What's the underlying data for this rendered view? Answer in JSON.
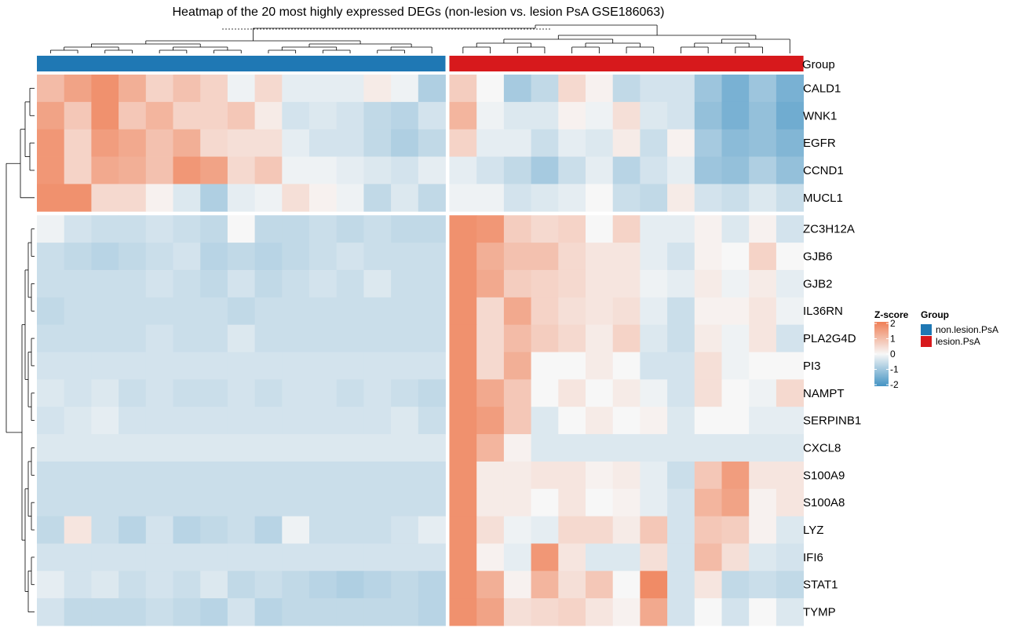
{
  "chart_data": {
    "type": "heatmap",
    "title": "Heatmap of the 20 most highly expressed DEGs (non-lesion vs. lesion PsA GSE186063)",
    "annotation_label": "Group",
    "rows": [
      "CALD1",
      "WNK1",
      "EGFR",
      "CCND1",
      "MUCL1",
      "ZC3H12A",
      "GJB6",
      "GJB2",
      "IL36RN",
      "PLA2G4D",
      "PI3",
      "NAMPT",
      "SERPINB1",
      "CXCL8",
      "S100A9",
      "S100A8",
      "LYZ",
      "IFI6",
      "STAT1",
      "TYMP"
    ],
    "column_groups": [
      {
        "name": "non.lesion.PsA",
        "color": "#1F78B4",
        "n_columns": 15
      },
      {
        "name": "lesion.PsA",
        "color": "#D7191C",
        "n_columns": 13
      }
    ],
    "values": [
      [
        1.0,
        1.4,
        1.7,
        1.2,
        0.6,
        0.9,
        0.6,
        -0.1,
        0.5,
        -0.2,
        -0.2,
        -0.2,
        0.2,
        -0.1,
        -0.8,
        0.7,
        0.0,
        -0.9,
        -0.6,
        0.5,
        0.1,
        -0.6,
        -0.4,
        -0.4,
        -1.0,
        -1.4,
        -1.0,
        -1.4
      ],
      [
        1.4,
        0.8,
        1.7,
        0.8,
        1.1,
        0.6,
        0.6,
        0.8,
        0.2,
        -0.4,
        -0.3,
        -0.4,
        -0.6,
        -0.7,
        -0.4,
        1.1,
        -0.1,
        -0.3,
        -0.3,
        0.1,
        -0.1,
        0.4,
        -0.3,
        -0.4,
        -1.1,
        -1.4,
        -1.1,
        -1.5
      ],
      [
        1.6,
        0.6,
        1.5,
        1.3,
        0.9,
        1.2,
        0.5,
        0.4,
        0.4,
        -0.2,
        -0.4,
        -0.4,
        -0.6,
        -0.8,
        -0.6,
        0.6,
        -0.2,
        -0.2,
        -0.5,
        -0.2,
        -0.3,
        0.2,
        -0.5,
        0.1,
        -0.9,
        -1.2,
        -1.1,
        -1.3
      ],
      [
        1.6,
        0.6,
        1.3,
        1.2,
        0.9,
        1.6,
        1.4,
        0.5,
        0.8,
        -0.1,
        -0.1,
        -0.2,
        -0.3,
        -0.4,
        -0.2,
        -0.2,
        -0.4,
        -0.6,
        -0.9,
        -0.5,
        -0.2,
        -0.7,
        -0.4,
        -0.2,
        -1.0,
        -1.1,
        -0.8,
        -1.1
      ],
      [
        1.7,
        1.7,
        0.5,
        0.5,
        0.1,
        -0.3,
        -0.8,
        -0.2,
        -0.1,
        0.4,
        0.1,
        -0.1,
        -0.6,
        -0.3,
        -0.6,
        -0.1,
        -0.1,
        -0.4,
        -0.3,
        -0.2,
        0.0,
        -0.5,
        -0.6,
        0.2,
        -0.4,
        -0.5,
        -0.3,
        -0.5
      ],
      [
        -0.1,
        -0.4,
        -0.5,
        -0.5,
        -0.4,
        -0.5,
        -0.6,
        0.0,
        -0.6,
        -0.6,
        -0.5,
        -0.6,
        -0.5,
        -0.6,
        -0.6,
        1.7,
        1.6,
        0.7,
        0.5,
        0.6,
        0.0,
        0.6,
        -0.2,
        -0.2,
        0.1,
        -0.3,
        0.1,
        -0.4
      ],
      [
        -0.5,
        -0.6,
        -0.7,
        -0.6,
        -0.5,
        -0.4,
        -0.7,
        -0.6,
        -0.7,
        -0.6,
        -0.5,
        -0.4,
        -0.5,
        -0.5,
        -0.5,
        1.7,
        1.2,
        0.9,
        0.9,
        0.5,
        0.3,
        0.3,
        -0.2,
        -0.4,
        0.1,
        0.0,
        0.6,
        0.0
      ],
      [
        -0.5,
        -0.5,
        -0.5,
        -0.5,
        -0.4,
        -0.5,
        -0.6,
        -0.4,
        -0.6,
        -0.5,
        -0.4,
        -0.5,
        -0.3,
        -0.5,
        -0.5,
        1.7,
        1.3,
        0.7,
        0.6,
        0.5,
        0.3,
        0.3,
        -0.1,
        -0.2,
        0.2,
        -0.1,
        0.2,
        -0.2
      ],
      [
        -0.6,
        -0.5,
        -0.5,
        -0.5,
        -0.5,
        -0.5,
        -0.5,
        -0.6,
        -0.5,
        -0.5,
        -0.5,
        -0.5,
        -0.5,
        -0.5,
        -0.5,
        1.7,
        0.5,
        1.3,
        0.6,
        0.4,
        0.3,
        0.4,
        -0.2,
        -0.5,
        0.1,
        0.1,
        0.3,
        -0.1
      ],
      [
        -0.5,
        -0.5,
        -0.5,
        -0.5,
        -0.4,
        -0.5,
        -0.5,
        -0.3,
        -0.5,
        -0.5,
        -0.5,
        -0.5,
        -0.5,
        -0.5,
        -0.5,
        1.7,
        0.5,
        1.0,
        0.7,
        0.5,
        0.2,
        0.6,
        -0.3,
        -0.5,
        0.2,
        -0.1,
        0.3,
        -0.4
      ],
      [
        -0.4,
        -0.4,
        -0.4,
        -0.4,
        -0.4,
        -0.4,
        -0.4,
        -0.4,
        -0.4,
        -0.4,
        -0.4,
        -0.4,
        -0.4,
        -0.4,
        -0.4,
        1.7,
        0.5,
        1.2,
        0.0,
        0.0,
        0.2,
        0.0,
        -0.4,
        -0.4,
        0.4,
        -0.1,
        0.0,
        0.0
      ],
      [
        -0.3,
        -0.4,
        -0.3,
        -0.5,
        -0.4,
        -0.5,
        -0.5,
        -0.4,
        -0.5,
        -0.4,
        -0.4,
        -0.5,
        -0.4,
        -0.5,
        -0.6,
        1.7,
        1.3,
        0.8,
        0.0,
        0.3,
        0.0,
        0.2,
        -0.1,
        -0.4,
        0.4,
        0.0,
        -0.1,
        0.5
      ],
      [
        -0.4,
        -0.3,
        -0.2,
        -0.4,
        -0.4,
        -0.4,
        -0.4,
        -0.4,
        -0.4,
        -0.4,
        -0.4,
        -0.4,
        -0.4,
        -0.3,
        -0.5,
        1.7,
        1.5,
        0.8,
        -0.3,
        0.0,
        0.2,
        0.0,
        0.1,
        -0.3,
        0.0,
        0.0,
        -0.2,
        -0.2
      ],
      [
        -0.3,
        -0.3,
        -0.3,
        -0.3,
        -0.3,
        -0.3,
        -0.3,
        -0.3,
        -0.3,
        -0.3,
        -0.3,
        -0.3,
        -0.3,
        -0.3,
        -0.3,
        1.7,
        1.1,
        0.1,
        -0.3,
        -0.3,
        -0.3,
        -0.3,
        -0.3,
        -0.3,
        -0.3,
        -0.3,
        -0.3,
        -0.3
      ],
      [
        -0.5,
        -0.5,
        -0.5,
        -0.5,
        -0.5,
        -0.5,
        -0.5,
        -0.5,
        -0.5,
        -0.5,
        -0.5,
        -0.5,
        -0.5,
        -0.5,
        -0.5,
        1.7,
        0.2,
        0.2,
        0.3,
        0.3,
        0.1,
        0.2,
        -0.2,
        -0.5,
        0.8,
        1.5,
        0.3,
        0.3
      ],
      [
        -0.5,
        -0.5,
        -0.5,
        -0.5,
        -0.5,
        -0.5,
        -0.5,
        -0.5,
        -0.5,
        -0.5,
        -0.5,
        -0.5,
        -0.5,
        -0.5,
        -0.5,
        1.7,
        0.2,
        0.2,
        0.0,
        0.3,
        0.0,
        0.1,
        -0.2,
        -0.4,
        1.1,
        1.4,
        0.1,
        0.3
      ],
      [
        -0.6,
        0.3,
        -0.5,
        -0.7,
        -0.4,
        -0.7,
        -0.6,
        -0.5,
        -0.7,
        -0.1,
        -0.5,
        -0.5,
        -0.5,
        -0.4,
        -0.2,
        1.7,
        0.4,
        -0.1,
        -0.2,
        0.5,
        0.5,
        0.2,
        0.8,
        -0.4,
        0.8,
        0.7,
        0.1,
        -0.3
      ],
      [
        -0.4,
        -0.4,
        -0.4,
        -0.4,
        -0.4,
        -0.4,
        -0.4,
        -0.4,
        -0.4,
        -0.4,
        -0.4,
        -0.4,
        -0.4,
        -0.4,
        -0.4,
        1.7,
        0.1,
        -0.2,
        1.6,
        0.3,
        -0.3,
        -0.3,
        0.4,
        -0.4,
        1.0,
        0.4,
        -0.3,
        -0.4
      ],
      [
        -0.2,
        -0.4,
        -0.3,
        -0.5,
        -0.4,
        -0.5,
        -0.3,
        -0.6,
        -0.5,
        -0.6,
        -0.7,
        -0.8,
        -0.7,
        -0.6,
        -0.7,
        1.7,
        1.2,
        0.1,
        1.1,
        0.4,
        0.8,
        0.0,
        1.8,
        -0.4,
        0.3,
        -0.6,
        -0.5,
        -0.6
      ],
      [
        -0.4,
        -0.6,
        -0.6,
        -0.6,
        -0.5,
        -0.6,
        -0.7,
        -0.4,
        -0.7,
        -0.6,
        -0.6,
        -0.6,
        -0.6,
        -0.6,
        -0.7,
        1.7,
        1.4,
        0.4,
        0.5,
        0.6,
        0.3,
        0.1,
        1.3,
        -0.4,
        0.0,
        -0.4,
        0.0,
        -0.3
      ]
    ],
    "color_scale": {
      "title": "Z-score",
      "range": [
        -2,
        2
      ],
      "ticks": [
        2,
        1,
        0,
        -1,
        -2
      ],
      "low_color": "#4393C3",
      "mid_color": "#F7F7F7",
      "high_color": "#EF7F56"
    },
    "row_dendrogram": true,
    "column_dendrogram": true,
    "legend_position": "right"
  }
}
